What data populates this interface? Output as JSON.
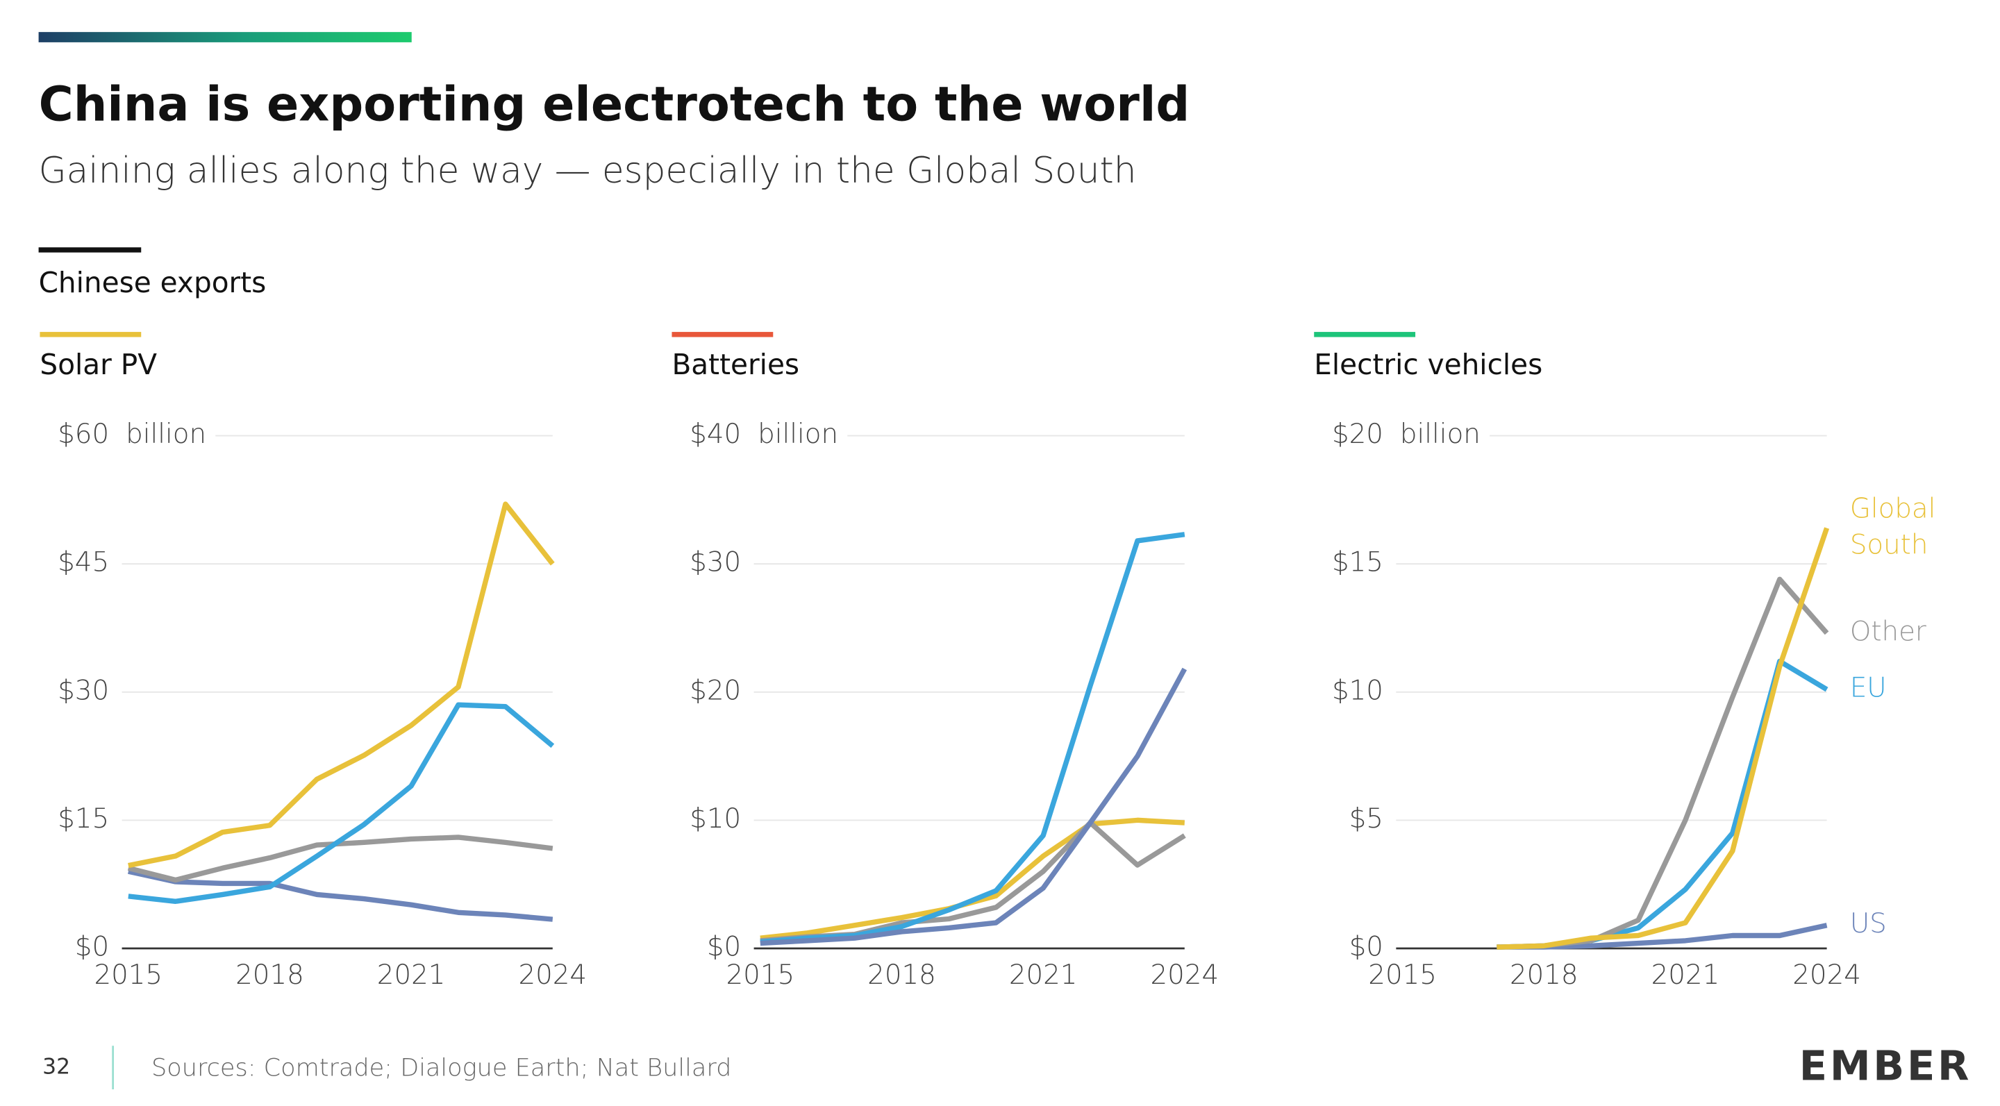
{
  "title": "China is exporting electrotech to the world",
  "subtitle": "Gaining allies along the way — especially in the Global South",
  "section": "Chinese exports",
  "page_number": "32",
  "sources": "Sources: Comtrade; Dialogue Earth; Nat Bullard",
  "logo": "EMBER",
  "chart_data": [
    {
      "type": "line",
      "title": "Solar PV",
      "accent_color": "#E8C13A",
      "ylabel": "billion",
      "grid": true,
      "x": [
        2015,
        2016,
        2017,
        2018,
        2019,
        2020,
        2021,
        2022,
        2023,
        2024
      ],
      "xlim": [
        2015,
        2024
      ],
      "xticks": [
        2015,
        2018,
        2021,
        2024
      ],
      "ylim": [
        0,
        60
      ],
      "yticks": [
        {
          "value": 0,
          "label": "$0"
        },
        {
          "value": 15,
          "label": "$15"
        },
        {
          "value": 30,
          "label": "$30"
        },
        {
          "value": 45,
          "label": "$45"
        },
        {
          "value": 60,
          "label": "$60"
        }
      ],
      "series": [
        {
          "color": "#6C84B9",
          "values": [
            9,
            7.8,
            7.6,
            7.6,
            6.3,
            5.8,
            5.1,
            4.2,
            3.9,
            3.4
          ]
        },
        {
          "color": "#999999",
          "values": [
            9.4,
            8,
            9.4,
            10.6,
            12.1,
            12.4,
            12.8,
            13,
            12.4,
            11.7
          ]
        },
        {
          "color": "#3AA6DD",
          "values": [
            6.1,
            5.5,
            6.3,
            7.2,
            10.8,
            14.5,
            19,
            28.5,
            28.3,
            23.7
          ]
        },
        {
          "color": "#E8C13A",
          "values": [
            9.7,
            10.8,
            13.6,
            14.4,
            19.8,
            22.6,
            26.1,
            30.6,
            52,
            45
          ]
        }
      ]
    },
    {
      "type": "line",
      "title": "Batteries",
      "accent_color": "#E8573A",
      "ylabel": "billion",
      "grid": true,
      "x": [
        2015,
        2016,
        2017,
        2018,
        2019,
        2020,
        2021,
        2022,
        2023,
        2024
      ],
      "xlim": [
        2015,
        2024
      ],
      "xticks": [
        2015,
        2018,
        2021,
        2024
      ],
      "ylim": [
        0,
        40
      ],
      "yticks": [
        {
          "value": 0,
          "label": "$0"
        },
        {
          "value": 10,
          "label": "$10"
        },
        {
          "value": 20,
          "label": "$20"
        },
        {
          "value": 30,
          "label": "$30"
        },
        {
          "value": 40,
          "label": "$40"
        }
      ],
      "series": [
        {
          "color": "#E8C13A",
          "values": [
            0.8,
            1.2,
            1.8,
            2.4,
            3.1,
            4.1,
            7.2,
            9.7,
            10,
            9.8
          ]
        },
        {
          "color": "#999999",
          "values": [
            0.6,
            0.9,
            1.1,
            2,
            2.3,
            3.2,
            6,
            9.8,
            6.5,
            8.8
          ]
        },
        {
          "color": "#3AA6DD",
          "values": [
            0.5,
            0.8,
            1,
            1.7,
            3,
            4.5,
            8.8,
            20.5,
            31.8,
            32.3
          ]
        },
        {
          "color": "#6C84B9",
          "values": [
            0.4,
            0.6,
            0.8,
            1.3,
            1.6,
            2,
            4.7,
            9.8,
            15,
            21.8
          ]
        }
      ]
    },
    {
      "type": "line",
      "title": "Electric vehicles",
      "accent_color": "#1DC47A",
      "ylabel": "billion",
      "grid": true,
      "legend": "line-end",
      "x": [
        2015,
        2016,
        2017,
        2018,
        2019,
        2020,
        2021,
        2022,
        2023,
        2024
      ],
      "xlim": [
        2015,
        2024
      ],
      "xticks": [
        2015,
        2018,
        2021,
        2024
      ],
      "ylim": [
        0,
        20
      ],
      "yticks": [
        {
          "value": 0,
          "label": "$0"
        },
        {
          "value": 5,
          "label": "$5"
        },
        {
          "value": 10,
          "label": "$10"
        },
        {
          "value": 15,
          "label": "$15"
        },
        {
          "value": 20,
          "label": "$20"
        }
      ],
      "series": [
        {
          "name": "US",
          "color": "#6C84B9",
          "values": [
            null,
            null,
            0.05,
            0.05,
            0.1,
            0.2,
            0.3,
            0.5,
            0.5,
            0.9
          ]
        },
        {
          "name": "EU",
          "color": "#3AA6DD",
          "values": [
            null,
            null,
            0.05,
            0.1,
            0.3,
            0.8,
            2.3,
            4.5,
            11.2,
            10.1
          ]
        },
        {
          "name": "Other",
          "color": "#999999",
          "values": [
            null,
            null,
            0.05,
            0.1,
            0.3,
            1.1,
            5,
            9.8,
            14.4,
            12.3
          ]
        },
        {
          "name": "Global South",
          "color": "#E8C13A",
          "values": [
            null,
            null,
            0.05,
            0.1,
            0.4,
            0.5,
            1,
            3.8,
            11,
            16.4
          ]
        }
      ]
    }
  ]
}
